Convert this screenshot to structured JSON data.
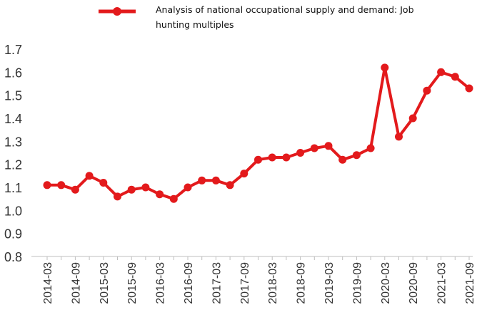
{
  "chart_data": {
    "type": "line",
    "legend": "Analysis of national occupational supply and demand: Job hunting multiples",
    "legend_position": "top-center",
    "grid": false,
    "color": "#e31a1c",
    "ylim": [
      0.8,
      1.7
    ],
    "y_ticks": [
      "0.8",
      "0.9",
      "1.0",
      "1.1",
      "1.2",
      "1.3",
      "1.4",
      "1.5",
      "1.6",
      "1.7"
    ],
    "x_tick_labels": [
      "2014-03",
      "2014-09",
      "2015-03",
      "2015-09",
      "2016-03",
      "2016-09",
      "2017-03",
      "2017-09",
      "2018-03",
      "2018-09",
      "2019-03",
      "2019-09",
      "2020-03",
      "2020-09",
      "2021-03",
      "2021-09"
    ],
    "x": [
      "2014-03",
      "2014-06",
      "2014-09",
      "2014-12",
      "2015-03",
      "2015-06",
      "2015-09",
      "2015-12",
      "2016-03",
      "2016-06",
      "2016-09",
      "2016-12",
      "2017-03",
      "2017-06",
      "2017-09",
      "2017-12",
      "2018-03",
      "2018-06",
      "2018-09",
      "2018-12",
      "2019-03",
      "2019-06",
      "2019-09",
      "2019-12",
      "2020-03",
      "2020-06",
      "2020-09",
      "2020-12",
      "2021-03",
      "2021-06",
      "2021-09"
    ],
    "series": [
      {
        "name": "Analysis of national occupational supply and demand: Job hunting multiples",
        "values": [
          1.11,
          1.11,
          1.09,
          1.15,
          1.12,
          1.06,
          1.09,
          1.1,
          1.07,
          1.05,
          1.1,
          1.13,
          1.13,
          1.11,
          1.16,
          1.22,
          1.23,
          1.23,
          1.25,
          1.27,
          1.28,
          1.22,
          1.24,
          1.27,
          1.62,
          1.32,
          1.4,
          1.52,
          1.6,
          1.58,
          1.53
        ]
      }
    ]
  }
}
